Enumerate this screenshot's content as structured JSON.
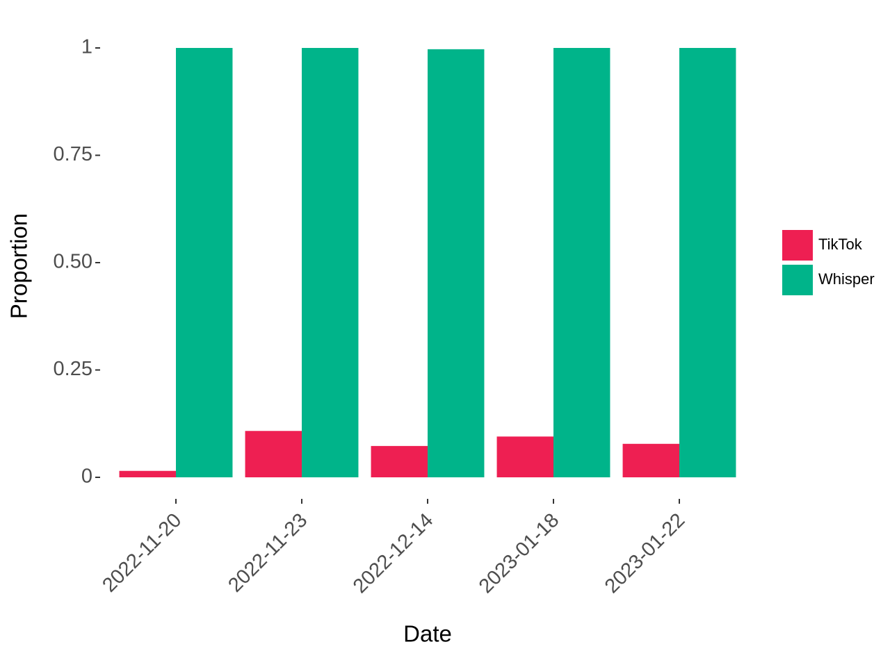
{
  "chart_data": {
    "type": "bar",
    "x_label": "Date",
    "y_label": "Proportion",
    "categories": [
      "2022-11-20",
      "2022-11-23",
      "2022-12-14",
      "2023-01-18",
      "2023-01-22"
    ],
    "series": [
      {
        "name": "TikTok",
        "color": "#ee1f52",
        "values": [
          0.015,
          0.108,
          0.073,
          0.095,
          0.078
        ]
      },
      {
        "name": "Whisper",
        "color": "#00b48a",
        "values": [
          1,
          1,
          0.997,
          1,
          1
        ]
      }
    ],
    "ylim": [
      -0.05,
      1.05
    ],
    "yticks": [
      0,
      0.25,
      {
        "value": 0.5,
        "label": "0.50"
      },
      0.75,
      1
    ],
    "grid": false,
    "legend": "right"
  }
}
